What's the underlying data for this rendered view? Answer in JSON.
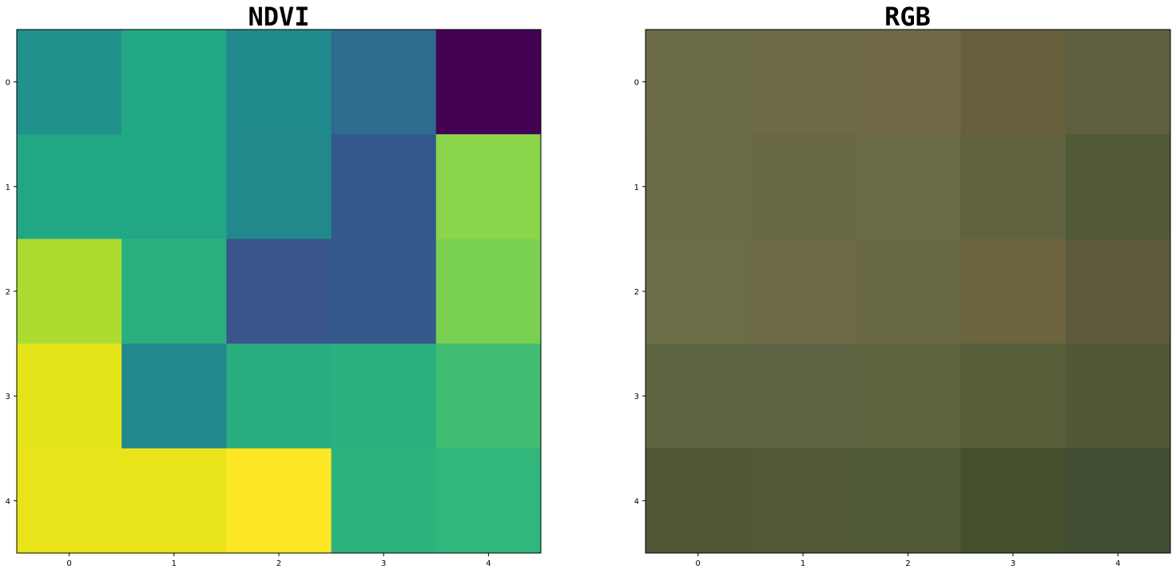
{
  "chart_data": [
    {
      "type": "heatmap",
      "title": "NDVI",
      "x_ticks": [
        "0",
        "1",
        "2",
        "3",
        "4"
      ],
      "y_ticks": [
        "0",
        "1",
        "2",
        "3",
        "4"
      ],
      "colormap": "viridis",
      "grid": false,
      "colors": [
        [
          "#21918c",
          "#22a785",
          "#208a8c",
          "#2e6b8e",
          "#440154"
        ],
        [
          "#22a785",
          "#22a785",
          "#21898c",
          "#33598c",
          "#8ad54a"
        ],
        [
          "#addc30",
          "#2ab07f",
          "#3a548c",
          "#35598b",
          "#7ad151"
        ],
        [
          "#e2e418",
          "#22888d",
          "#28ad81",
          "#2bb07f",
          "#40bd72"
        ],
        [
          "#e8e419",
          "#e8e419",
          "#fde725",
          "#2db27d",
          "#31b67b"
        ]
      ]
    },
    {
      "type": "heatmap",
      "title": "RGB",
      "x_ticks": [
        "0",
        "1",
        "2",
        "3",
        "4"
      ],
      "y_ticks": [
        "0",
        "1",
        "2",
        "3",
        "4"
      ],
      "grid": false,
      "colors": [
        [
          "#6b6b47",
          "#6f6a46",
          "#6f6945",
          "#67603d",
          "#615f41"
        ],
        [
          "#696a46",
          "#696846",
          "#6b6a46",
          "#61623f",
          "#525a38"
        ],
        [
          "#6b6d47",
          "#6b6946",
          "#696944",
          "#6c653e",
          "#5e5a3e"
        ],
        [
          "#5e6543",
          "#5f6544",
          "#5e6340",
          "#555d39",
          "#535737"
        ],
        [
          "#505737",
          "#515937",
          "#515a36",
          "#454f2e",
          "#414e32"
        ]
      ]
    }
  ]
}
